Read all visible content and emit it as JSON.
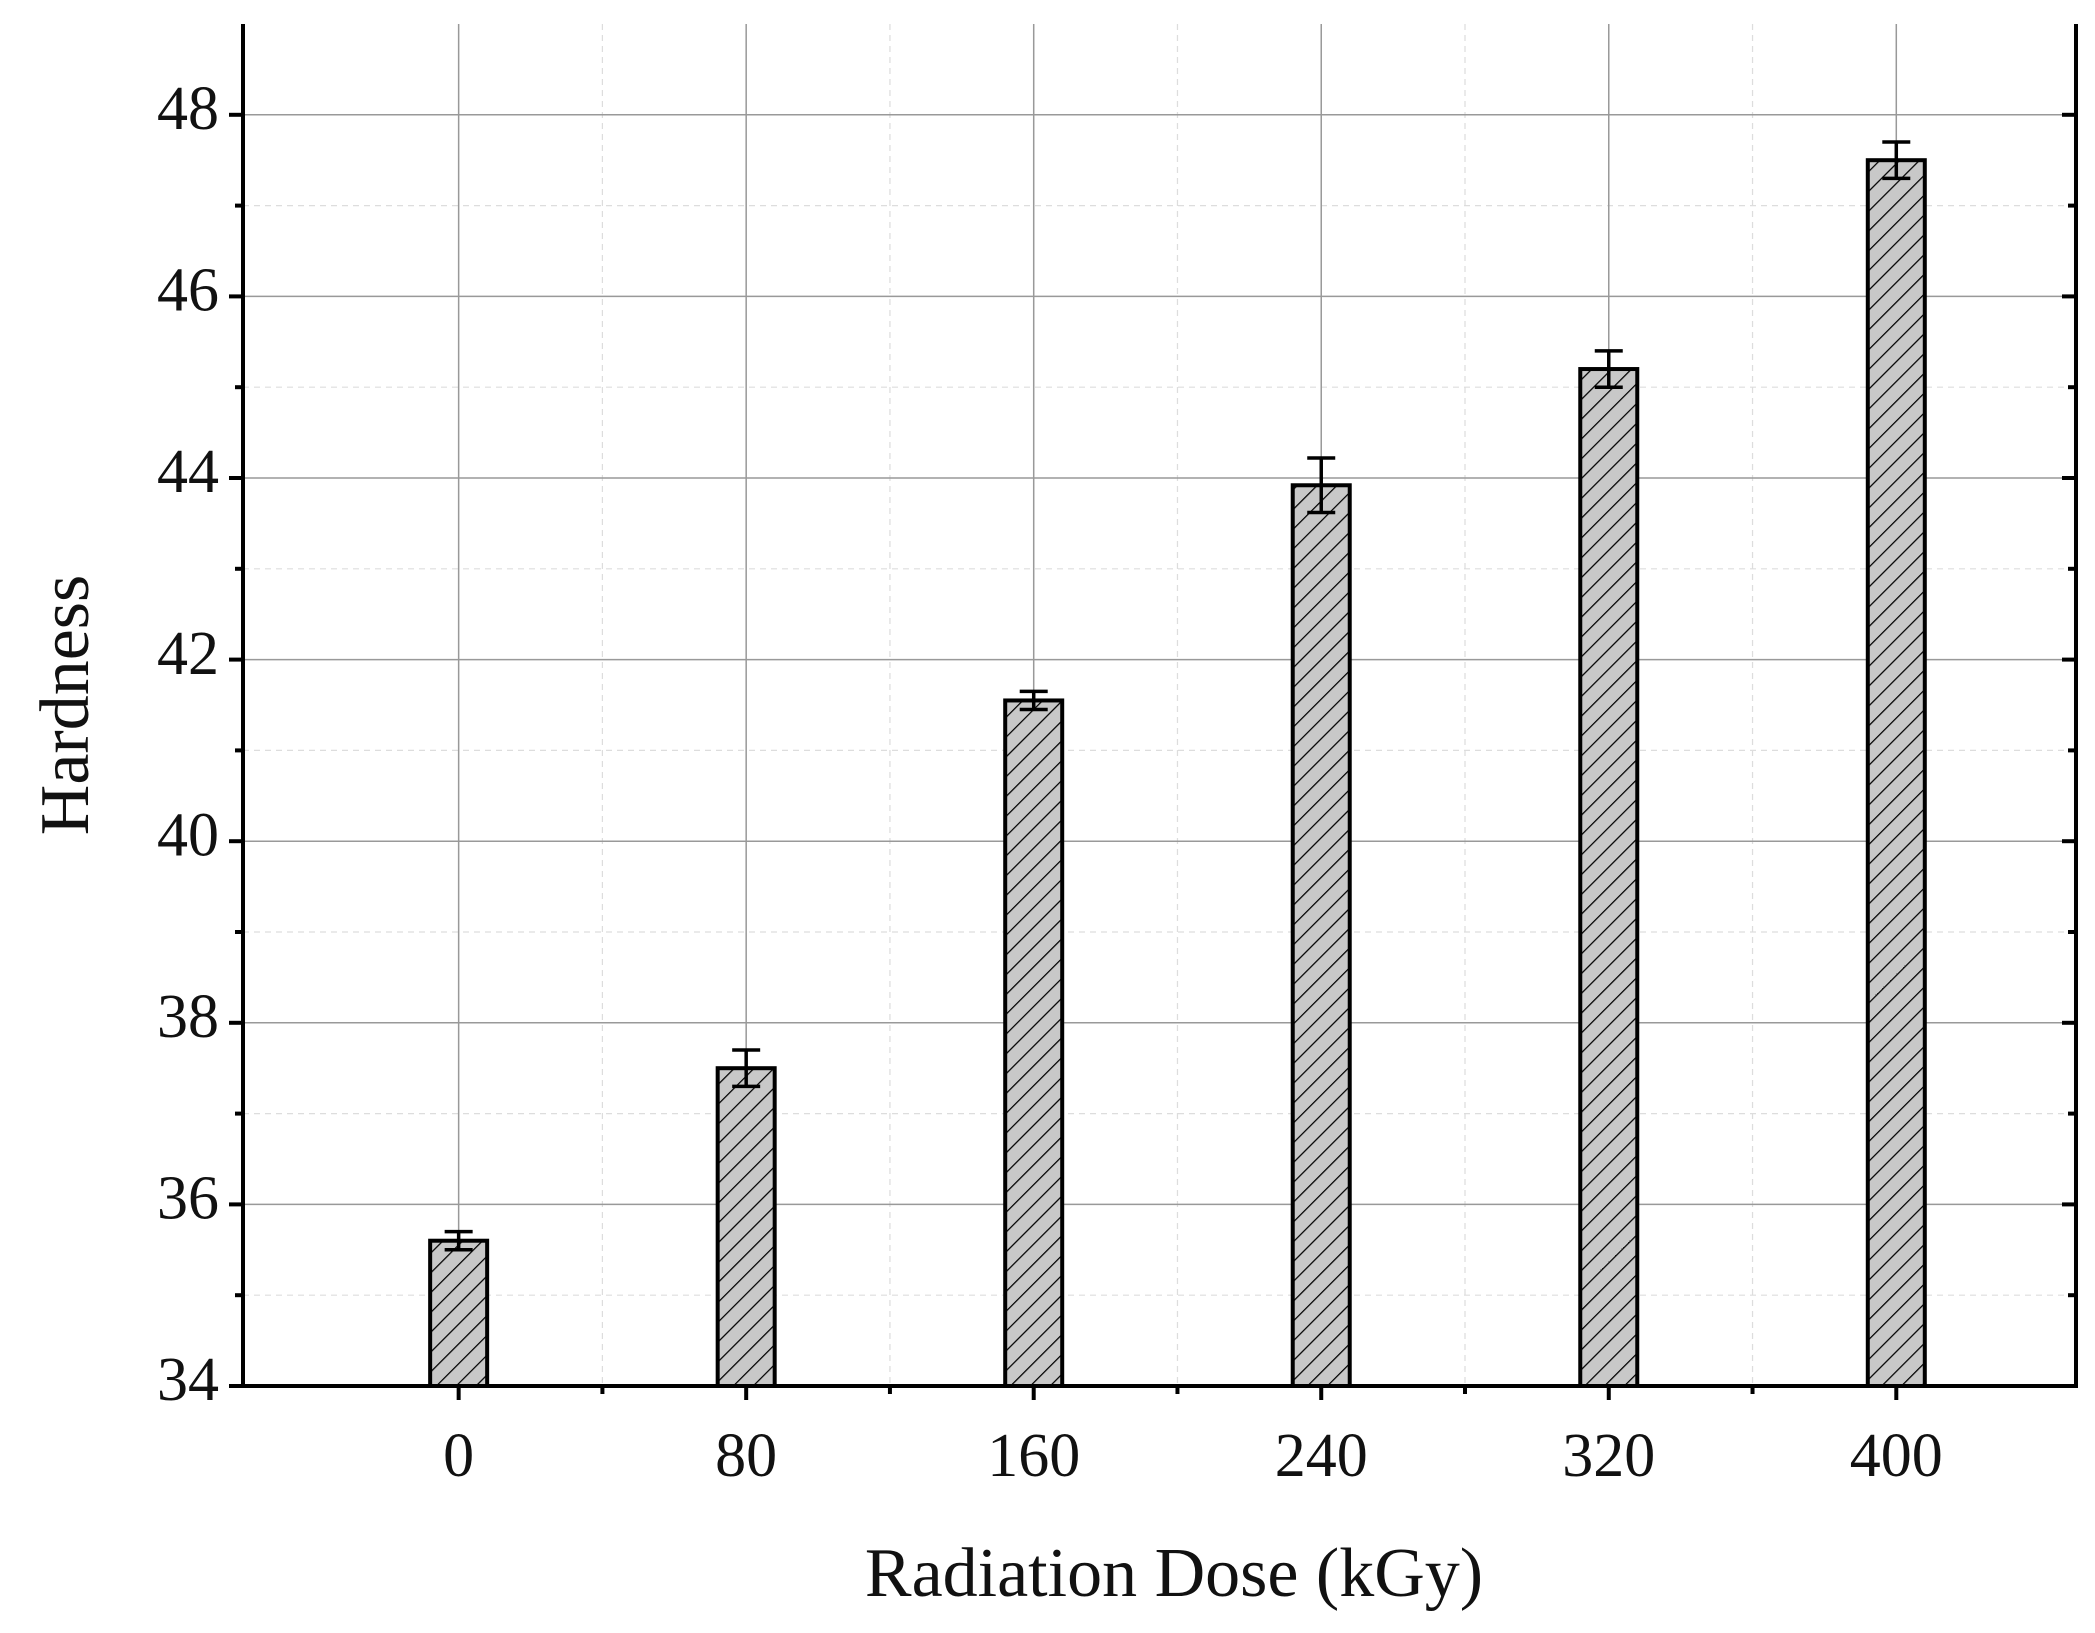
{
  "chart_data": {
    "type": "bar",
    "x_label": "Radiation Dose (kGy)",
    "y_label": "Hardness",
    "x": [
      0,
      80,
      160,
      240,
      320,
      400
    ],
    "values": [
      35.6,
      37.5,
      41.55,
      43.92,
      45.2,
      47.5
    ],
    "errors": [
      0.1,
      0.2,
      0.1,
      0.3,
      0.2,
      0.2
    ],
    "color": "#c8c8c8",
    "xlim": [
      -60,
      450
    ],
    "xticks": [
      0,
      80,
      160,
      240,
      320,
      400
    ],
    "ylim": [
      34,
      49
    ],
    "yticks": [
      34,
      36,
      38,
      40,
      42,
      44,
      46,
      48
    ],
    "grid": true
  }
}
